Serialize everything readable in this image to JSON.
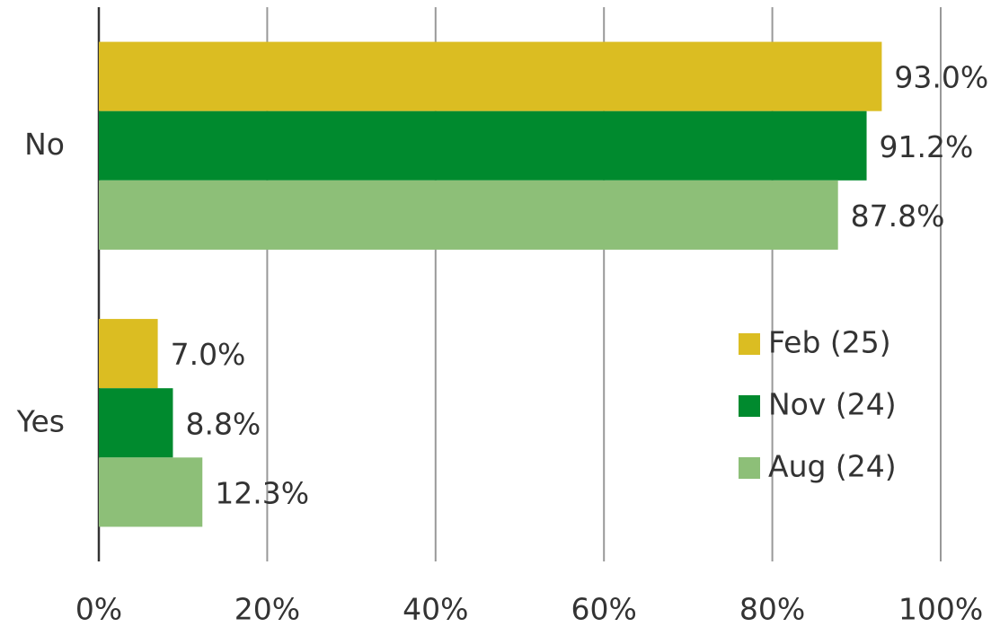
{
  "chart_data": {
    "type": "hbar",
    "categories": [
      "No",
      "Yes"
    ],
    "series": [
      {
        "name": "Feb (25)",
        "color": "#dbbd22",
        "values": [
          93.0,
          7.0
        ],
        "value_labels": [
          "93.0%",
          "7.0%"
        ]
      },
      {
        "name": "Nov (24)",
        "color": "#008a2e",
        "values": [
          91.2,
          8.8
        ],
        "value_labels": [
          "91.2%",
          "8.8%"
        ]
      },
      {
        "name": "Aug (24)",
        "color": "#8dbf78",
        "values": [
          87.8,
          12.3
        ],
        "value_labels": [
          "87.8%",
          "12.3%"
        ]
      }
    ],
    "xlim": [
      0,
      100
    ],
    "xticks": [
      {
        "value": 0,
        "label": "0%"
      },
      {
        "value": 20,
        "label": "20%"
      },
      {
        "value": 40,
        "label": "40%"
      },
      {
        "value": 60,
        "label": "60%"
      },
      {
        "value": 80,
        "label": "80%"
      },
      {
        "value": 100,
        "label": "100%"
      }
    ],
    "grid": true,
    "legend": "right"
  }
}
